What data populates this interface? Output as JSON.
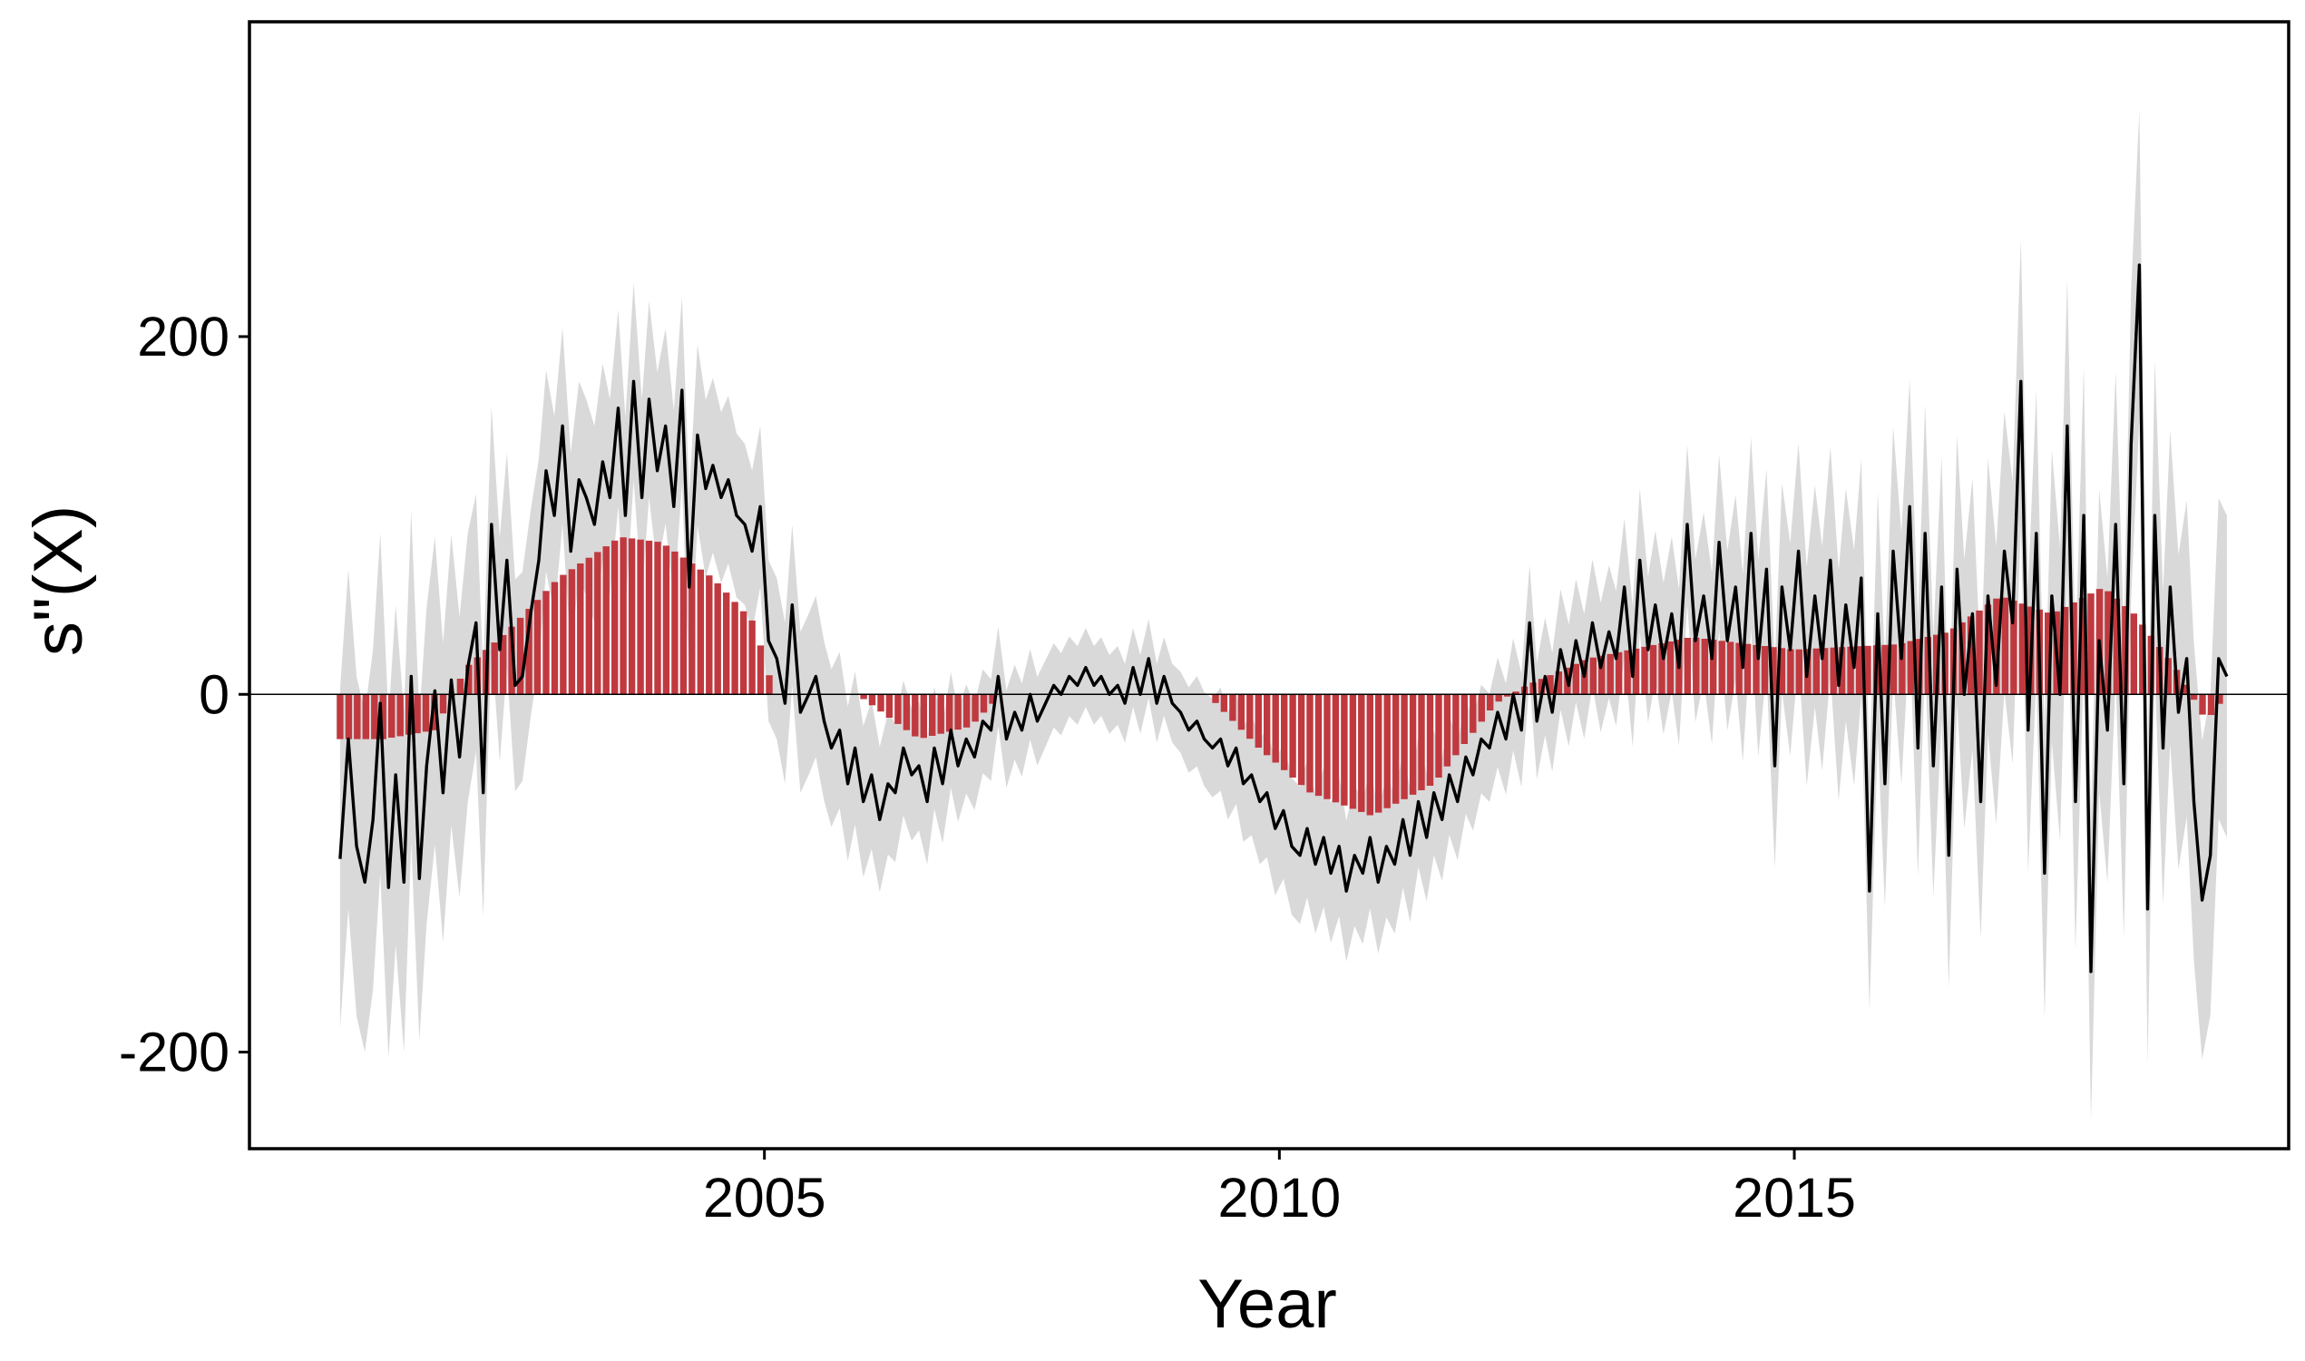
{
  "chart_data": {
    "type": "line",
    "title": "",
    "xlabel": "Year",
    "ylabel": "s\"(X)",
    "xlim": [
      2000.0,
      2019.8
    ],
    "ylim": [
      -254,
      376
    ],
    "x_ticks": [
      2005,
      2010,
      2015
    ],
    "x_tick_labels": [
      "2005",
      "2010",
      "2015"
    ],
    "y_ticks": [
      -200,
      0,
      200
    ],
    "y_tick_labels": [
      "-200",
      "0",
      "200"
    ],
    "grid": false,
    "legend": "none",
    "reference_line_y": 0,
    "colors": {
      "line": "#000000",
      "band": "#d9d9d9",
      "bars": "#c0393f",
      "zero_line": "#000000",
      "frame": "#000000"
    },
    "series": [
      {
        "type": "line",
        "points": [
          [
            2000.88,
            -92
          ],
          [
            2000.96,
            -25
          ],
          [
            2001.04,
            -85
          ],
          [
            2001.12,
            -105
          ],
          [
            2001.2,
            -70
          ],
          [
            2001.27,
            -5
          ],
          [
            2001.35,
            -108
          ],
          [
            2001.42,
            -45
          ],
          [
            2001.5,
            -105
          ],
          [
            2001.57,
            10
          ],
          [
            2001.65,
            -103
          ],
          [
            2001.72,
            -40
          ],
          [
            2001.8,
            2
          ],
          [
            2001.88,
            -55
          ],
          [
            2001.96,
            8
          ],
          [
            2002.04,
            -35
          ],
          [
            2002.12,
            15
          ],
          [
            2002.2,
            40
          ],
          [
            2002.27,
            -55
          ],
          [
            2002.35,
            95
          ],
          [
            2002.43,
            25
          ],
          [
            2002.5,
            75
          ],
          [
            2002.58,
            5
          ],
          [
            2002.65,
            10
          ],
          [
            2002.73,
            45
          ],
          [
            2002.81,
            75
          ],
          [
            2002.88,
            125
          ],
          [
            2002.96,
            100
          ],
          [
            2003.04,
            150
          ],
          [
            2003.12,
            80
          ],
          [
            2003.2,
            120
          ],
          [
            2003.27,
            110
          ],
          [
            2003.35,
            95
          ],
          [
            2003.43,
            130
          ],
          [
            2003.5,
            110
          ],
          [
            2003.58,
            160
          ],
          [
            2003.65,
            100
          ],
          [
            2003.73,
            175
          ],
          [
            2003.81,
            110
          ],
          [
            2003.88,
            165
          ],
          [
            2003.96,
            125
          ],
          [
            2004.04,
            150
          ],
          [
            2004.12,
            105
          ],
          [
            2004.2,
            170
          ],
          [
            2004.27,
            60
          ],
          [
            2004.35,
            145
          ],
          [
            2004.43,
            115
          ],
          [
            2004.5,
            128
          ],
          [
            2004.58,
            110
          ],
          [
            2004.65,
            120
          ],
          [
            2004.73,
            100
          ],
          [
            2004.81,
            95
          ],
          [
            2004.88,
            80
          ],
          [
            2004.96,
            105
          ],
          [
            2005.04,
            30
          ],
          [
            2005.12,
            20
          ],
          [
            2005.2,
            -5
          ],
          [
            2005.27,
            50
          ],
          [
            2005.35,
            -10
          ],
          [
            2005.43,
            0
          ],
          [
            2005.5,
            10
          ],
          [
            2005.58,
            -15
          ],
          [
            2005.65,
            -30
          ],
          [
            2005.73,
            -20
          ],
          [
            2005.81,
            -50
          ],
          [
            2005.88,
            -30
          ],
          [
            2005.96,
            -60
          ],
          [
            2006.04,
            -45
          ],
          [
            2006.12,
            -70
          ],
          [
            2006.2,
            -50
          ],
          [
            2006.27,
            -55
          ],
          [
            2006.35,
            -30
          ],
          [
            2006.43,
            -45
          ],
          [
            2006.5,
            -40
          ],
          [
            2006.58,
            -60
          ],
          [
            2006.65,
            -30
          ],
          [
            2006.73,
            -50
          ],
          [
            2006.81,
            -20
          ],
          [
            2006.88,
            -40
          ],
          [
            2006.96,
            -25
          ],
          [
            2007.04,
            -35
          ],
          [
            2007.12,
            -15
          ],
          [
            2007.2,
            -20
          ],
          [
            2007.27,
            10
          ],
          [
            2007.35,
            -25
          ],
          [
            2007.43,
            -10
          ],
          [
            2007.5,
            -20
          ],
          [
            2007.58,
            0
          ],
          [
            2007.65,
            -15
          ],
          [
            2007.73,
            -5
          ],
          [
            2007.81,
            5
          ],
          [
            2007.88,
            0
          ],
          [
            2007.96,
            10
          ],
          [
            2008.04,
            5
          ],
          [
            2008.12,
            15
          ],
          [
            2008.2,
            5
          ],
          [
            2008.27,
            10
          ],
          [
            2008.35,
            0
          ],
          [
            2008.43,
            5
          ],
          [
            2008.5,
            -5
          ],
          [
            2008.58,
            15
          ],
          [
            2008.65,
            0
          ],
          [
            2008.73,
            20
          ],
          [
            2008.81,
            -5
          ],
          [
            2008.88,
            10
          ],
          [
            2008.96,
            -5
          ],
          [
            2009.04,
            -10
          ],
          [
            2009.12,
            -20
          ],
          [
            2009.2,
            -15
          ],
          [
            2009.27,
            -25
          ],
          [
            2009.35,
            -30
          ],
          [
            2009.43,
            -25
          ],
          [
            2009.5,
            -40
          ],
          [
            2009.58,
            -30
          ],
          [
            2009.65,
            -50
          ],
          [
            2009.73,
            -45
          ],
          [
            2009.81,
            -60
          ],
          [
            2009.88,
            -55
          ],
          [
            2009.96,
            -75
          ],
          [
            2010.04,
            -65
          ],
          [
            2010.12,
            -85
          ],
          [
            2010.2,
            -90
          ],
          [
            2010.27,
            -75
          ],
          [
            2010.35,
            -95
          ],
          [
            2010.43,
            -80
          ],
          [
            2010.5,
            -100
          ],
          [
            2010.58,
            -85
          ],
          [
            2010.65,
            -110
          ],
          [
            2010.73,
            -90
          ],
          [
            2010.81,
            -100
          ],
          [
            2010.88,
            -80
          ],
          [
            2010.96,
            -105
          ],
          [
            2011.04,
            -85
          ],
          [
            2011.12,
            -95
          ],
          [
            2011.2,
            -70
          ],
          [
            2011.27,
            -90
          ],
          [
            2011.35,
            -60
          ],
          [
            2011.43,
            -80
          ],
          [
            2011.5,
            -55
          ],
          [
            2011.58,
            -70
          ],
          [
            2011.65,
            -45
          ],
          [
            2011.73,
            -60
          ],
          [
            2011.81,
            -35
          ],
          [
            2011.88,
            -45
          ],
          [
            2011.96,
            -25
          ],
          [
            2012.04,
            -30
          ],
          [
            2012.12,
            -10
          ],
          [
            2012.2,
            -25
          ],
          [
            2012.27,
            0
          ],
          [
            2012.35,
            -20
          ],
          [
            2012.43,
            40
          ],
          [
            2012.5,
            -15
          ],
          [
            2012.58,
            10
          ],
          [
            2012.65,
            -10
          ],
          [
            2012.73,
            25
          ],
          [
            2012.81,
            5
          ],
          [
            2012.88,
            30
          ],
          [
            2012.96,
            10
          ],
          [
            2013.04,
            40
          ],
          [
            2013.12,
            15
          ],
          [
            2013.2,
            35
          ],
          [
            2013.27,
            20
          ],
          [
            2013.35,
            60
          ],
          [
            2013.43,
            10
          ],
          [
            2013.5,
            75
          ],
          [
            2013.58,
            25
          ],
          [
            2013.65,
            50
          ],
          [
            2013.73,
            20
          ],
          [
            2013.81,
            45
          ],
          [
            2013.88,
            15
          ],
          [
            2013.96,
            95
          ],
          [
            2014.04,
            30
          ],
          [
            2014.12,
            55
          ],
          [
            2014.2,
            20
          ],
          [
            2014.27,
            85
          ],
          [
            2014.35,
            30
          ],
          [
            2014.43,
            60
          ],
          [
            2014.5,
            15
          ],
          [
            2014.58,
            90
          ],
          [
            2014.65,
            20
          ],
          [
            2014.73,
            70
          ],
          [
            2014.81,
            -40
          ],
          [
            2014.88,
            60
          ],
          [
            2014.96,
            25
          ],
          [
            2015.04,
            80
          ],
          [
            2015.12,
            10
          ],
          [
            2015.2,
            55
          ],
          [
            2015.27,
            20
          ],
          [
            2015.35,
            75
          ],
          [
            2015.43,
            5
          ],
          [
            2015.5,
            50
          ],
          [
            2015.58,
            15
          ],
          [
            2015.65,
            65
          ],
          [
            2015.73,
            -110
          ],
          [
            2015.81,
            45
          ],
          [
            2015.88,
            -50
          ],
          [
            2015.96,
            80
          ],
          [
            2016.04,
            20
          ],
          [
            2016.12,
            105
          ],
          [
            2016.2,
            -30
          ],
          [
            2016.27,
            90
          ],
          [
            2016.35,
            -40
          ],
          [
            2016.43,
            60
          ],
          [
            2016.5,
            -90
          ],
          [
            2016.58,
            70
          ],
          [
            2016.65,
            0
          ],
          [
            2016.73,
            45
          ],
          [
            2016.81,
            -60
          ],
          [
            2016.88,
            55
          ],
          [
            2016.96,
            5
          ],
          [
            2017.04,
            80
          ],
          [
            2017.12,
            40
          ],
          [
            2017.2,
            175
          ],
          [
            2017.27,
            -20
          ],
          [
            2017.35,
            90
          ],
          [
            2017.43,
            -100
          ],
          [
            2017.5,
            55
          ],
          [
            2017.58,
            0
          ],
          [
            2017.65,
            150
          ],
          [
            2017.73,
            -60
          ],
          [
            2017.81,
            100
          ],
          [
            2017.88,
            -155
          ],
          [
            2017.96,
            30
          ],
          [
            2018.04,
            -20
          ],
          [
            2018.12,
            95
          ],
          [
            2018.2,
            -50
          ],
          [
            2018.27,
            140
          ],
          [
            2018.35,
            240
          ],
          [
            2018.43,
            -120
          ],
          [
            2018.5,
            100
          ],
          [
            2018.58,
            -30
          ],
          [
            2018.65,
            60
          ],
          [
            2018.73,
            -10
          ],
          [
            2018.81,
            20
          ],
          [
            2018.88,
            -60
          ],
          [
            2018.96,
            -115
          ],
          [
            2019.04,
            -90
          ],
          [
            2019.12,
            20
          ],
          [
            2019.2,
            10
          ]
        ]
      },
      {
        "type": "band",
        "note": "",
        "halfwidth": [
          [
            2000.88,
            95
          ],
          [
            2001.5,
            95
          ],
          [
            2002.0,
            80
          ],
          [
            2002.5,
            60
          ],
          [
            2003.0,
            55
          ],
          [
            2004.0,
            55
          ],
          [
            2004.8,
            45
          ],
          [
            2005.5,
            45
          ],
          [
            2006.0,
            42
          ],
          [
            2007.0,
            30
          ],
          [
            2008.0,
            22
          ],
          [
            2009.0,
            22
          ],
          [
            2010.0,
            38
          ],
          [
            2011.0,
            40
          ],
          [
            2012.0,
            30
          ],
          [
            2013.0,
            35
          ],
          [
            2014.0,
            45
          ],
          [
            2015.0,
            60
          ],
          [
            2016.0,
            70
          ],
          [
            2017.0,
            78
          ],
          [
            2018.0,
            85
          ],
          [
            2019.2,
            90
          ]
        ]
      },
      {
        "type": "bar",
        "note": "",
        "envelope": [
          [
            2000.88,
            -25
          ],
          [
            2001.3,
            -25
          ],
          [
            2001.8,
            -20
          ],
          [
            2002.1,
            15
          ],
          [
            2002.5,
            35
          ],
          [
            2003.0,
            65
          ],
          [
            2003.6,
            88
          ],
          [
            2004.0,
            85
          ],
          [
            2004.5,
            65
          ],
          [
            2004.9,
            40
          ],
          [
            2005.1,
            0
          ],
          [
            2005.9,
            0
          ],
          [
            2006.5,
            -25
          ],
          [
            2007.0,
            -18
          ],
          [
            2007.3,
            0
          ],
          [
            2009.3,
            0
          ],
          [
            2009.8,
            -30
          ],
          [
            2010.3,
            -55
          ],
          [
            2010.9,
            -68
          ],
          [
            2011.5,
            -50
          ],
          [
            2012.1,
            -5
          ],
          [
            2012.4,
            5
          ],
          [
            2013.0,
            20
          ],
          [
            2014.0,
            32
          ],
          [
            2015.0,
            25
          ],
          [
            2016.0,
            28
          ],
          [
            2016.5,
            35
          ],
          [
            2017.0,
            55
          ],
          [
            2017.5,
            45
          ],
          [
            2018.0,
            60
          ],
          [
            2018.3,
            45
          ],
          [
            2018.7,
            15
          ],
          [
            2019.0,
            -15
          ],
          [
            2019.2,
            0
          ]
        ]
      }
    ]
  }
}
